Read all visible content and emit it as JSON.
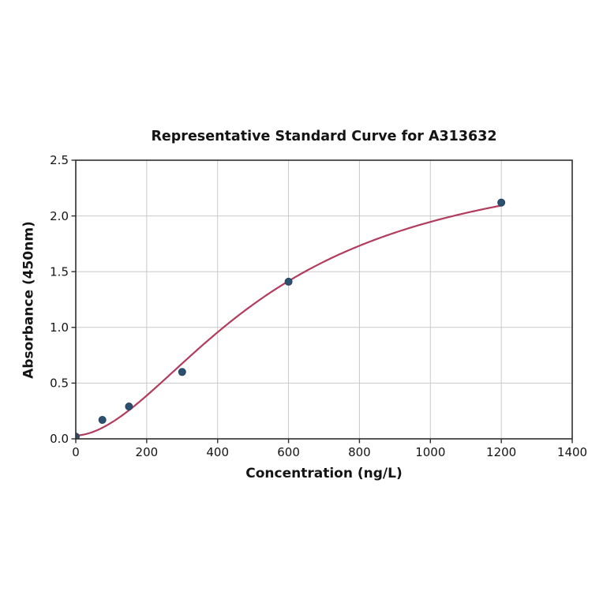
{
  "chart_data": {
    "type": "scatter",
    "title": "Representative Standard Curve for A313632",
    "xlabel": "Concentration (ng/L)",
    "ylabel": "Absorbance (450nm)",
    "xlim": [
      0,
      1400
    ],
    "ylim": [
      0,
      2.5
    ],
    "x_ticks": [
      0,
      200,
      400,
      600,
      800,
      1000,
      1200,
      1400
    ],
    "y_ticks": [
      0,
      0.5,
      1,
      1.5,
      2,
      2.5
    ],
    "grid": true,
    "legend": "none",
    "points": [
      {
        "x": 0,
        "y": 0.02
      },
      {
        "x": 75,
        "y": 0.17
      },
      {
        "x": 150,
        "y": 0.29
      },
      {
        "x": 300,
        "y": 0.6
      },
      {
        "x": 600,
        "y": 1.41
      },
      {
        "x": 1200,
        "y": 2.12
      }
    ],
    "fit_curve": {
      "model": "4PL",
      "params": {
        "a": 0.03,
        "b": 1.8,
        "c": 550,
        "d": 2.6
      },
      "x_range": [
        0,
        1200
      ]
    },
    "colors": {
      "point": "#2d5070",
      "point_edge": "#24445f",
      "curve": "#b23c5e",
      "grid": "#c9c9c9",
      "axis": "#2f2f2f",
      "text": "#141414",
      "background": "#ffffff"
    }
  }
}
